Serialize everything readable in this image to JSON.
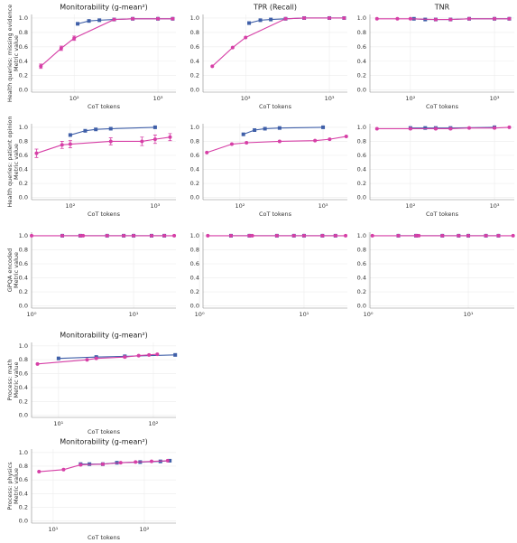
{
  "chart_data": [
    {
      "type": "line",
      "title": "Monitorability (g-mean²)",
      "ylabel": [
        "Health queries: missing evidence",
        "Metric value"
      ],
      "xlabel": "CoT tokens",
      "log_x": true,
      "grid": true,
      "xlim": [
        31,
        1640
      ],
      "xticks": [
        {
          "value": 100,
          "label": "10²"
        },
        {
          "value": 1000,
          "label": "10³"
        }
      ],
      "ylim": [
        -0.03,
        1.05
      ],
      "yticks": [
        {
          "value": 0,
          "label": "0.0"
        },
        {
          "value": 0.2,
          "label": "0.2"
        },
        {
          "value": 0.4,
          "label": "0.4"
        },
        {
          "value": 0.6,
          "label": "0.6"
        },
        {
          "value": 0.8,
          "label": "0.8"
        },
        {
          "value": 1,
          "label": "1.0"
        }
      ],
      "series": [
        {
          "color": "#3f5fa8",
          "marker": "square",
          "x": [
            110,
            150,
            200,
            300,
            500,
            1000,
            1500
          ],
          "values": [
            0.92,
            0.96,
            0.97,
            0.98,
            0.99,
            0.99,
            0.99
          ]
        },
        {
          "color": "#d63fa6",
          "marker": "circle",
          "x": [
            40,
            70,
            100,
            300,
            500,
            1000,
            1500
          ],
          "values": [
            0.33,
            0.58,
            0.72,
            0.98,
            0.99,
            0.99,
            0.99
          ],
          "errors": [
            0.03,
            0.03,
            0.03,
            0.01,
            0.01,
            0.01,
            0.01
          ]
        }
      ]
    },
    {
      "type": "line",
      "title": "TPR (Recall)",
      "xlabel": "CoT tokens",
      "log_x": true,
      "grid": true,
      "xlim": [
        31,
        1640
      ],
      "xticks": [
        {
          "value": 100,
          "label": "10²"
        },
        {
          "value": 1000,
          "label": "10³"
        }
      ],
      "ylim": [
        -0.03,
        1.05
      ],
      "yticks": [
        {
          "value": 0,
          "label": "0.0"
        },
        {
          "value": 0.2,
          "label": "0.2"
        },
        {
          "value": 0.4,
          "label": "0.4"
        },
        {
          "value": 0.6,
          "label": "0.6"
        },
        {
          "value": 0.8,
          "label": "0.8"
        },
        {
          "value": 1,
          "label": "1.0"
        }
      ],
      "series": [
        {
          "color": "#3f5fa8",
          "marker": "square",
          "x": [
            110,
            150,
            200,
            300,
            500,
            1000,
            1500
          ],
          "values": [
            0.93,
            0.97,
            0.98,
            0.99,
            1.0,
            1.0,
            1.0
          ]
        },
        {
          "color": "#d63fa6",
          "marker": "circle",
          "x": [
            40,
            70,
            100,
            300,
            500,
            1000,
            1500
          ],
          "values": [
            0.33,
            0.59,
            0.73,
            0.99,
            1.0,
            1.0,
            1.0
          ]
        }
      ]
    },
    {
      "type": "line",
      "title": "TNR",
      "xlabel": "CoT tokens",
      "log_x": true,
      "grid": true,
      "xlim": [
        33,
        1720
      ],
      "xticks": [
        {
          "value": 100,
          "label": "10²"
        },
        {
          "value": 1000,
          "label": "10³"
        }
      ],
      "ylim": [
        -0.03,
        1.05
      ],
      "yticks": [
        {
          "value": 0,
          "label": "0.0"
        },
        {
          "value": 0.2,
          "label": "0.2"
        },
        {
          "value": 0.4,
          "label": "0.4"
        },
        {
          "value": 0.6,
          "label": "0.6"
        },
        {
          "value": 0.8,
          "label": "0.8"
        },
        {
          "value": 1,
          "label": "1.0"
        }
      ],
      "series": [
        {
          "color": "#3f5fa8",
          "marker": "square",
          "x": [
            110,
            150,
            200,
            300,
            500,
            1000,
            1500
          ],
          "values": [
            0.99,
            0.98,
            0.98,
            0.98,
            0.99,
            0.99,
            0.99
          ]
        },
        {
          "color": "#d63fa6",
          "marker": "circle",
          "x": [
            40,
            70,
            100,
            200,
            300,
            500,
            1000,
            1500
          ],
          "values": [
            0.99,
            0.99,
            0.99,
            0.98,
            0.98,
            0.99,
            0.99,
            0.99
          ]
        }
      ]
    },
    {
      "type": "line",
      "ylabel": [
        "Health queries: patient opinion",
        "Metric value"
      ],
      "xlabel": "CoT tokens",
      "log_x": true,
      "grid": true,
      "xlim": [
        35,
        1760
      ],
      "xticks": [
        {
          "value": 100,
          "label": "10²"
        },
        {
          "value": 1000,
          "label": "10³"
        }
      ],
      "ylim": [
        -0.03,
        1.05
      ],
      "yticks": [
        {
          "value": 0,
          "label": "0.0"
        },
        {
          "value": 0.2,
          "label": "0.2"
        },
        {
          "value": 0.4,
          "label": "0.4"
        },
        {
          "value": 0.6,
          "label": "0.6"
        },
        {
          "value": 0.8,
          "label": "0.8"
        },
        {
          "value": 1,
          "label": "1.0"
        }
      ],
      "series": [
        {
          "color": "#3f5fa8",
          "marker": "square",
          "x": [
            100,
            150,
            200,
            300,
            1000
          ],
          "values": [
            0.89,
            0.95,
            0.97,
            0.98,
            1.0
          ]
        },
        {
          "color": "#d63fa6",
          "marker": "circle",
          "x": [
            40,
            80,
            100,
            300,
            700,
            1000,
            1500
          ],
          "values": [
            0.63,
            0.75,
            0.76,
            0.8,
            0.8,
            0.83,
            0.86
          ],
          "errors": [
            0.06,
            0.05,
            0.05,
            0.05,
            0.06,
            0.06,
            0.05
          ]
        }
      ]
    },
    {
      "type": "line",
      "xlabel": "CoT tokens",
      "log_x": true,
      "grid": true,
      "xlim": [
        36,
        1960
      ],
      "xticks": [
        {
          "value": 100,
          "label": "10²"
        },
        {
          "value": 1000,
          "label": "10³"
        }
      ],
      "ylim": [
        -0.03,
        1.05
      ],
      "yticks": [
        {
          "value": 0,
          "label": "0.0"
        },
        {
          "value": 0.2,
          "label": "0.2"
        },
        {
          "value": 0.4,
          "label": "0.4"
        },
        {
          "value": 0.6,
          "label": "0.6"
        },
        {
          "value": 0.8,
          "label": "0.8"
        },
        {
          "value": 1,
          "label": "1.0"
        }
      ],
      "series": [
        {
          "color": "#3f5fa8",
          "marker": "square",
          "x": [
            110,
            150,
            200,
            300,
            1000
          ],
          "values": [
            0.9,
            0.96,
            0.98,
            0.99,
            1.0
          ]
        },
        {
          "color": "#d63fa6",
          "marker": "circle",
          "x": [
            40,
            80,
            120,
            300,
            800,
            1200,
            1900
          ],
          "values": [
            0.64,
            0.76,
            0.78,
            0.8,
            0.81,
            0.83,
            0.87
          ]
        }
      ]
    },
    {
      "type": "line",
      "xlabel": "CoT tokens",
      "log_x": true,
      "grid": true,
      "xlim": [
        33,
        1720
      ],
      "xticks": [
        {
          "value": 100,
          "label": "10²"
        },
        {
          "value": 1000,
          "label": "10³"
        }
      ],
      "ylim": [
        -0.03,
        1.05
      ],
      "yticks": [
        {
          "value": 0,
          "label": "0.0"
        },
        {
          "value": 0.2,
          "label": "0.2"
        },
        {
          "value": 0.4,
          "label": "0.4"
        },
        {
          "value": 0.6,
          "label": "0.6"
        },
        {
          "value": 0.8,
          "label": "0.8"
        },
        {
          "value": 1,
          "label": "1.0"
        }
      ],
      "series": [
        {
          "color": "#3f5fa8",
          "marker": "square",
          "x": [
            100,
            150,
            200,
            300,
            1000
          ],
          "values": [
            0.99,
            0.99,
            0.99,
            0.99,
            1.0
          ]
        },
        {
          "color": "#d63fa6",
          "marker": "circle",
          "x": [
            40,
            100,
            200,
            300,
            500,
            1000,
            1500
          ],
          "values": [
            0.98,
            0.98,
            0.98,
            0.98,
            0.99,
            0.99,
            1.0
          ]
        }
      ]
    },
    {
      "type": "line",
      "ylabel": [
        "GPQA encoded",
        "Metric value"
      ],
      "log_x": true,
      "grid": true,
      "xlim": [
        1,
        26
      ],
      "xticks": [
        {
          "value": 1,
          "label": "10⁰"
        },
        {
          "value": 10,
          "label": "10¹"
        }
      ],
      "ylim": [
        -0.03,
        1.05
      ],
      "yticks": [
        {
          "value": 0,
          "label": "0.0"
        },
        {
          "value": 0.2,
          "label": "0.2"
        },
        {
          "value": 0.4,
          "label": "0.4"
        },
        {
          "value": 0.6,
          "label": "0.6"
        },
        {
          "value": 0.8,
          "label": "0.8"
        },
        {
          "value": 1,
          "label": "1.0"
        }
      ],
      "series": [
        {
          "color": "#3f5fa8",
          "marker": "square",
          "x": [
            2,
            3,
            5.5,
            8,
            10,
            15,
            20
          ],
          "values": [
            1,
            1,
            1,
            1,
            1,
            1,
            1
          ]
        },
        {
          "color": "#d63fa6",
          "marker": "circle",
          "x": [
            1,
            2,
            3,
            3.2,
            5.5,
            8,
            10,
            15,
            20,
            25
          ],
          "values": [
            1,
            1,
            1,
            1,
            1,
            1,
            1,
            1,
            1,
            1
          ]
        }
      ]
    },
    {
      "type": "line",
      "log_x": true,
      "grid": true,
      "xlim": [
        1.08,
        26
      ],
      "xticks": [
        {
          "value": 1,
          "label": "10⁰"
        },
        {
          "value": 10,
          "label": "10¹"
        }
      ],
      "ylim": [
        -0.03,
        1.05
      ],
      "yticks": [
        {
          "value": 0,
          "label": "0.0"
        },
        {
          "value": 0.2,
          "label": "0.2"
        },
        {
          "value": 0.4,
          "label": "0.4"
        },
        {
          "value": 0.6,
          "label": "0.6"
        },
        {
          "value": 0.8,
          "label": "0.8"
        },
        {
          "value": 1,
          "label": "1.0"
        }
      ],
      "series": [
        {
          "color": "#3f5fa8",
          "marker": "square",
          "x": [
            2,
            3,
            5.5,
            8,
            10,
            15,
            20
          ],
          "values": [
            1,
            1,
            1,
            1,
            1,
            1,
            1
          ]
        },
        {
          "color": "#d63fa6",
          "marker": "circle",
          "x": [
            1.2,
            2,
            3,
            3.2,
            5.5,
            8,
            10,
            15,
            20,
            25
          ],
          "values": [
            1,
            1,
            1,
            1,
            1,
            1,
            1,
            1,
            1,
            1
          ]
        }
      ]
    },
    {
      "type": "line",
      "log_x": true,
      "grid": true,
      "xlim": [
        1.04,
        28.8
      ],
      "xticks": [
        {
          "value": 1,
          "label": "10⁰"
        },
        {
          "value": 10,
          "label": "10¹"
        }
      ],
      "ylim": [
        -0.03,
        1.05
      ],
      "yticks": [
        {
          "value": 0,
          "label": "0.0"
        },
        {
          "value": 0.2,
          "label": "0.2"
        },
        {
          "value": 0.4,
          "label": "0.4"
        },
        {
          "value": 0.6,
          "label": "0.6"
        },
        {
          "value": 0.8,
          "label": "0.8"
        },
        {
          "value": 1,
          "label": "1.0"
        }
      ],
      "series": [
        {
          "color": "#3f5fa8",
          "marker": "square",
          "x": [
            2,
            3,
            5.5,
            8,
            10,
            15,
            20
          ],
          "values": [
            1,
            1,
            1,
            1,
            1,
            1,
            1
          ]
        },
        {
          "color": "#d63fa6",
          "marker": "circle",
          "x": [
            1.1,
            2,
            3,
            3.2,
            5.5,
            8,
            10,
            15,
            20,
            28
          ],
          "values": [
            1,
            1,
            1,
            1,
            1,
            1,
            1,
            1,
            1,
            1
          ]
        }
      ]
    },
    {
      "type": "line",
      "title": "Monitorability (g-mean²)",
      "ylabel": [
        "Process: math",
        "Metric value"
      ],
      "xlabel": "CoT tokens",
      "log_x": true,
      "grid": true,
      "xlim": [
        5.2,
        173
      ],
      "xticks": [
        {
          "value": 10,
          "label": "10¹"
        },
        {
          "value": 100,
          "label": "10²"
        }
      ],
      "ylim": [
        -0.03,
        1.05
      ],
      "yticks": [
        {
          "value": 0,
          "label": "0.0"
        },
        {
          "value": 0.2,
          "label": "0.2"
        },
        {
          "value": 0.4,
          "label": "0.4"
        },
        {
          "value": 0.6,
          "label": "0.6"
        },
        {
          "value": 0.8,
          "label": "0.8"
        },
        {
          "value": 1,
          "label": "1.0"
        }
      ],
      "series": [
        {
          "color": "#3f5fa8",
          "marker": "square",
          "x": [
            10,
            25,
            50,
            170
          ],
          "values": [
            0.82,
            0.84,
            0.85,
            0.87
          ]
        },
        {
          "color": "#d63fa6",
          "marker": "circle",
          "x": [
            6,
            20,
            25,
            50,
            70,
            90,
            110
          ],
          "values": [
            0.74,
            0.8,
            0.82,
            0.84,
            0.86,
            0.87,
            0.88
          ]
        }
      ]
    },
    {
      "type": "line",
      "title": "Monitorability (g-mean²)",
      "ylabel": [
        "Process: physics",
        "Metric value"
      ],
      "xlabel": "CoT tokens",
      "log_x": true,
      "grid": true,
      "xlim": [
        5.8,
        222
      ],
      "xticks": [
        {
          "value": 10,
          "label": "10¹"
        },
        {
          "value": 100,
          "label": "10²"
        }
      ],
      "ylim": [
        -0.03,
        1.05
      ],
      "yticks": [
        {
          "value": 0,
          "label": "0.0"
        },
        {
          "value": 0.2,
          "label": "0.2"
        },
        {
          "value": 0.4,
          "label": "0.4"
        },
        {
          "value": 0.6,
          "label": "0.6"
        },
        {
          "value": 0.8,
          "label": "0.8"
        },
        {
          "value": 1,
          "label": "1.0"
        }
      ],
      "series": [
        {
          "color": "#3f5fa8",
          "marker": "square",
          "x": [
            20,
            25,
            35,
            50,
            90,
            150,
            190
          ],
          "values": [
            0.83,
            0.83,
            0.83,
            0.85,
            0.86,
            0.87,
            0.88
          ]
        },
        {
          "color": "#d63fa6",
          "marker": "circle",
          "x": [
            7,
            13,
            20,
            35,
            55,
            80,
            120,
            180
          ],
          "values": [
            0.72,
            0.75,
            0.82,
            0.83,
            0.85,
            0.86,
            0.87,
            0.88
          ]
        }
      ]
    }
  ]
}
